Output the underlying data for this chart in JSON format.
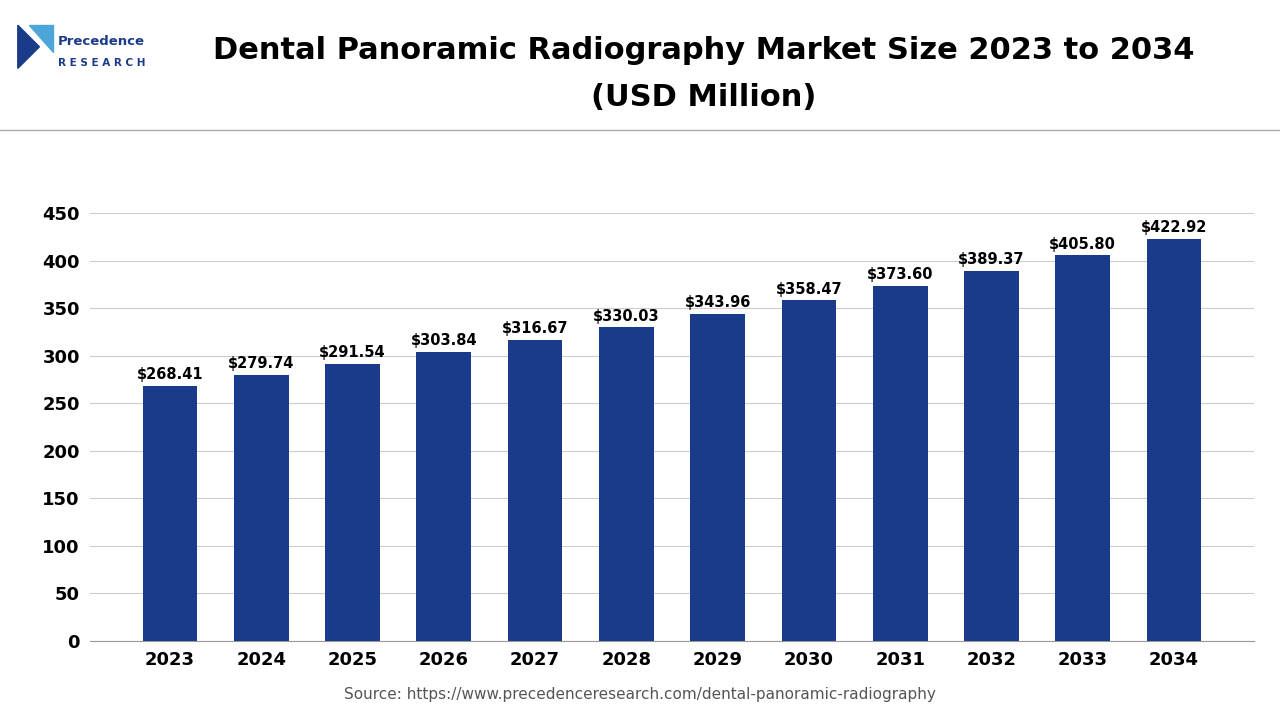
{
  "title_line1": "Dental Panoramic Radiography Market Size 2023 to 2034",
  "title_line2": "(USD Million)",
  "years": [
    2023,
    2024,
    2025,
    2026,
    2027,
    2028,
    2029,
    2030,
    2031,
    2032,
    2033,
    2034
  ],
  "values": [
    268.41,
    279.74,
    291.54,
    303.84,
    316.67,
    330.03,
    343.96,
    358.47,
    373.6,
    389.37,
    405.8,
    422.92
  ],
  "labels": [
    "$268.41",
    "$279.74",
    "$291.54",
    "$303.84",
    "$316.67",
    "$330.03",
    "$343.96",
    "$358.47",
    "$373.60",
    "$389.37",
    "$405.80",
    "$422.92"
  ],
  "bar_color": "#1a3a8a",
  "background_color": "#ffffff",
  "grid_color": "#cccccc",
  "yticks": [
    0,
    50,
    100,
    150,
    200,
    250,
    300,
    350,
    400,
    450
  ],
  "ylim": [
    0,
    470
  ],
  "source_text": "Source: https://www.precedenceresearch.com/dental-panoramic-radiography",
  "title_fontsize": 22,
  "label_fontsize": 10.5,
  "tick_fontsize": 13,
  "source_fontsize": 11,
  "logo_precedence_color": "#1a3a8a",
  "logo_accent_color": "#4da6d9"
}
